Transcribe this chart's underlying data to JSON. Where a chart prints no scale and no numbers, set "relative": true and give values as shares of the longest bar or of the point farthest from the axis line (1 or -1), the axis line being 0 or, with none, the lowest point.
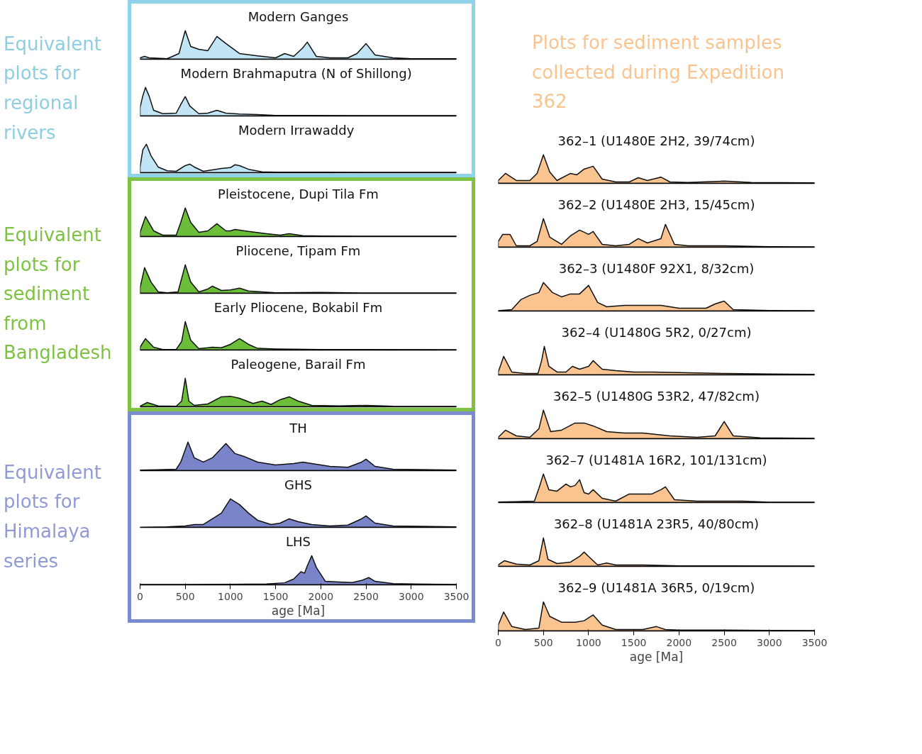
{
  "chart_data": [
    {
      "type": "area",
      "title": "Modern Ganges",
      "annotations": [
        "Equivalent plots for regional rivers"
      ],
      "relative": true,
      "color": "#c2e5f5",
      "xlim": [
        0,
        3500
      ],
      "tick_labels": false,
      "x": [
        0,
        50,
        100,
        300,
        430,
        500,
        560,
        650,
        750,
        850,
        950,
        1100,
        1300,
        1500,
        1600,
        1700,
        1800,
        1850,
        1950,
        2100,
        2300,
        2400,
        2500,
        2600,
        2800,
        3000,
        3500
      ],
      "values": [
        0.05,
        0.1,
        0.05,
        0.02,
        0.2,
        1,
        0.45,
        0.35,
        0.3,
        0.8,
        0.55,
        0.2,
        0.12,
        0.05,
        0.2,
        0.1,
        0.4,
        0.6,
        0.1,
        0.05,
        0.05,
        0.2,
        0.55,
        0.15,
        0.05,
        0.02,
        0.02
      ]
    },
    {
      "type": "area",
      "title": "Modern  Brahmaputra (N of Shillong)",
      "relative": true,
      "color": "#c2e5f5",
      "xlim": [
        0,
        3500
      ],
      "tick_labels": false,
      "x": [
        0,
        30,
        60,
        100,
        150,
        250,
        400,
        450,
        500,
        550,
        650,
        750,
        850,
        950,
        1100,
        1300,
        1500,
        1800,
        2500,
        3500
      ],
      "values": [
        0.3,
        0.7,
        1,
        0.7,
        0.2,
        0.08,
        0.1,
        0.4,
        0.68,
        0.35,
        0.08,
        0.1,
        0.2,
        0.1,
        0.07,
        0.05,
        0.02,
        0.02,
        0.01,
        0.01
      ]
    },
    {
      "type": "area",
      "title": "Modern  Irrawaddy",
      "relative": true,
      "color": "#c2e5f5",
      "xlim": [
        0,
        3500
      ],
      "tick_labels": false,
      "x": [
        0,
        30,
        70,
        120,
        200,
        300,
        400,
        500,
        550,
        600,
        700,
        800,
        900,
        1000,
        1050,
        1100,
        1200,
        1350,
        1500,
        2000,
        2500,
        3500
      ],
      "values": [
        0.2,
        0.8,
        1,
        0.6,
        0.2,
        0.07,
        0.05,
        0.25,
        0.3,
        0.2,
        0.05,
        0.1,
        0.15,
        0.18,
        0.28,
        0.25,
        0.12,
        0.03,
        0.02,
        0.02,
        0.01,
        0.01
      ]
    },
    {
      "type": "area",
      "title": "Pleistocene, Dupi Tila Fm",
      "annotations": [
        "Equivalent plots for sediment from Bangladesh"
      ],
      "relative": true,
      "color": "#6cbd3a",
      "xlim": [
        0,
        3500
      ],
      "tick_labels": false,
      "x": [
        0,
        60,
        150,
        250,
        400,
        450,
        500,
        560,
        650,
        750,
        850,
        950,
        1000,
        1050,
        1200,
        1400,
        1550,
        1650,
        1800,
        2000,
        2500,
        3500
      ],
      "values": [
        0.15,
        0.7,
        0.2,
        0.05,
        0.05,
        0.5,
        1,
        0.5,
        0.15,
        0.2,
        0.45,
        0.2,
        0.2,
        0.25,
        0.18,
        0.1,
        0.05,
        0.1,
        0.03,
        0.02,
        0.01,
        0.01
      ]
    },
    {
      "type": "area",
      "title": "Pliocene, Tipam Fm",
      "relative": true,
      "color": "#6cbd3a",
      "xlim": [
        0,
        3500
      ],
      "tick_labels": false,
      "x": [
        0,
        50,
        120,
        200,
        300,
        420,
        500,
        560,
        650,
        750,
        800,
        900,
        1000,
        1100,
        1200,
        1500,
        2000,
        2500,
        3500
      ],
      "values": [
        0.2,
        0.9,
        0.4,
        0.05,
        0.02,
        0.05,
        1,
        0.4,
        0.05,
        0.15,
        0.25,
        0.1,
        0.12,
        0.18,
        0.08,
        0.02,
        0.03,
        0.01,
        0.01
      ]
    },
    {
      "type": "area",
      "title": "Early Pliocene, Bokabil Fm",
      "relative": true,
      "color": "#6cbd3a",
      "xlim": [
        0,
        3500
      ],
      "tick_labels": false,
      "x": [
        0,
        60,
        150,
        250,
        400,
        460,
        500,
        560,
        650,
        750,
        800,
        900,
        1000,
        1100,
        1200,
        1300,
        1500,
        2000,
        3500
      ],
      "values": [
        0.1,
        0.4,
        0.1,
        0.02,
        0.02,
        0.3,
        1,
        0.35,
        0.05,
        0.08,
        0.1,
        0.08,
        0.2,
        0.4,
        0.2,
        0.06,
        0.04,
        0.02,
        0.01
      ]
    },
    {
      "type": "area",
      "title": "Paleogene, Barail Fm",
      "relative": true,
      "color": "#6cbd3a",
      "xlim": [
        0,
        3500
      ],
      "tick_labels": false,
      "x": [
        0,
        80,
        200,
        400,
        460,
        500,
        540,
        600,
        750,
        900,
        1000,
        1100,
        1250,
        1350,
        1450,
        1550,
        1650,
        1750,
        1900,
        2200,
        2500,
        2800,
        3500
      ],
      "values": [
        0.02,
        0.15,
        0.03,
        0.02,
        0.2,
        1,
        0.2,
        0.05,
        0.1,
        0.35,
        0.37,
        0.3,
        0.12,
        0.2,
        0.08,
        0.25,
        0.35,
        0.2,
        0.05,
        0.03,
        0.05,
        0.02,
        0.01
      ]
    },
    {
      "type": "area",
      "title": "TH",
      "annotations": [
        "Equivalent plots for Himalaya series"
      ],
      "relative": true,
      "color": "#7985c8",
      "xlim": [
        0,
        3500
      ],
      "tick_labels": false,
      "x": [
        0,
        200,
        400,
        450,
        530,
        600,
        700,
        800,
        950,
        1050,
        1150,
        1300,
        1500,
        1700,
        1800,
        1900,
        2100,
        2300,
        2450,
        2500,
        2600,
        2800,
        3500
      ],
      "values": [
        0.02,
        0.03,
        0.05,
        0.3,
        1,
        0.45,
        0.3,
        0.45,
        0.95,
        0.6,
        0.5,
        0.3,
        0.2,
        0.25,
        0.3,
        0.25,
        0.15,
        0.12,
        0.3,
        0.4,
        0.15,
        0.05,
        0.02
      ]
    },
    {
      "type": "area",
      "title": "GHS",
      "relative": true,
      "color": "#7985c8",
      "xlim": [
        0,
        3500
      ],
      "tick_labels": false,
      "x": [
        0,
        300,
        500,
        600,
        700,
        800,
        900,
        1000,
        1100,
        1200,
        1300,
        1450,
        1550,
        1650,
        1750,
        1900,
        2100,
        2300,
        2450,
        2500,
        2600,
        2800,
        3500
      ],
      "values": [
        0,
        0.02,
        0.05,
        0.1,
        0.1,
        0.3,
        0.5,
        1,
        0.8,
        0.5,
        0.25,
        0.1,
        0.15,
        0.3,
        0.2,
        0.1,
        0.05,
        0.08,
        0.3,
        0.4,
        0.15,
        0.05,
        0.02
      ]
    },
    {
      "type": "area",
      "title": "LHS",
      "relative": true,
      "color": "#7985c8",
      "xlim": [
        0,
        3500
      ],
      "xticks": [
        0,
        500,
        1000,
        1500,
        2000,
        2500,
        3000,
        3500
      ],
      "xlabel": "age [Ma]",
      "tick_labels": "x",
      "x": [
        0,
        500,
        1000,
        1400,
        1600,
        1700,
        1780,
        1820,
        1850,
        1900,
        1950,
        2050,
        2200,
        2350,
        2450,
        2530,
        2600,
        2800,
        3000,
        3500
      ],
      "values": [
        0.01,
        0.01,
        0.02,
        0.03,
        0.07,
        0.2,
        0.45,
        0.4,
        0.65,
        1,
        0.6,
        0.12,
        0.1,
        0.08,
        0.15,
        0.25,
        0.12,
        0.04,
        0.03,
        0.01
      ]
    },
    {
      "type": "area",
      "title": "362–1 (U1480E 2H2, 39/74cm)",
      "annotations": [
        "Plots for sediment samples collected during Expedition 362"
      ],
      "relative": true,
      "color": "#f9c48f",
      "xlim": [
        0,
        3500
      ],
      "tick_labels": false,
      "x": [
        0,
        80,
        200,
        350,
        430,
        500,
        570,
        650,
        800,
        870,
        950,
        1050,
        1150,
        1300,
        1450,
        1550,
        1650,
        1800,
        1900,
        2100,
        2500,
        2800,
        3500
      ],
      "values": [
        0.1,
        0.35,
        0.1,
        0.1,
        0.35,
        1,
        0.4,
        0.1,
        0.35,
        0.3,
        0.5,
        0.6,
        0.15,
        0.05,
        0.05,
        0.2,
        0.1,
        0.22,
        0.05,
        0.03,
        0.08,
        0.03,
        0.02
      ]
    },
    {
      "type": "area",
      "title": "362–2 (U1480E 2H3, 15/45cm)",
      "relative": true,
      "color": "#f9c48f",
      "xlim": [
        0,
        3500
      ],
      "tick_labels": false,
      "x": [
        0,
        50,
        130,
        200,
        350,
        430,
        500,
        570,
        700,
        800,
        900,
        1000,
        1050,
        1150,
        1300,
        1450,
        1550,
        1650,
        1800,
        1850,
        1950,
        2100,
        2500,
        3000,
        3500
      ],
      "values": [
        0.2,
        0.45,
        0.45,
        0.05,
        0.05,
        0.2,
        1,
        0.35,
        0.1,
        0.4,
        0.6,
        0.45,
        0.55,
        0.1,
        0.05,
        0.1,
        0.3,
        0.15,
        0.3,
        0.8,
        0.1,
        0.05,
        0.05,
        0.02,
        0.01
      ]
    },
    {
      "type": "area",
      "title": "362–3 (U1480F 92X1, 8/32cm)",
      "relative": true,
      "color": "#f9c48f",
      "xlim": [
        0,
        3500
      ],
      "tick_labels": false,
      "x": [
        0,
        150,
        250,
        350,
        450,
        500,
        600,
        700,
        800,
        900,
        1000,
        1100,
        1200,
        1400,
        1600,
        1800,
        2000,
        2300,
        2400,
        2500,
        2600,
        3000,
        3500
      ],
      "values": [
        0.01,
        0.05,
        0.4,
        0.55,
        0.65,
        1,
        0.65,
        0.5,
        0.6,
        0.6,
        0.9,
        0.3,
        0.15,
        0.2,
        0.2,
        0.2,
        0.1,
        0.1,
        0.25,
        0.35,
        0.05,
        0.02,
        0.01
      ]
    },
    {
      "type": "area",
      "title": "362–4 (U1480G 5R2, 0/27cm)",
      "relative": true,
      "color": "#f9c48f",
      "xlim": [
        0,
        3500
      ],
      "tick_labels": false,
      "x": [
        0,
        60,
        150,
        300,
        440,
        480,
        510,
        560,
        650,
        750,
        820,
        900,
        1000,
        1050,
        1150,
        1300,
        1500,
        1700,
        2000,
        2500,
        3000,
        3500
      ],
      "values": [
        0.1,
        0.65,
        0.1,
        0.05,
        0.05,
        0.5,
        1,
        0.3,
        0.1,
        0.1,
        0.3,
        0.2,
        0.3,
        0.5,
        0.2,
        0.15,
        0.1,
        0.1,
        0.08,
        0.05,
        0.03,
        0.02
      ]
    },
    {
      "type": "area",
      "title": "362–5 (U1480G 53R2, 47/82cm)",
      "relative": true,
      "color": "#f9c48f",
      "xlim": [
        0,
        3500
      ],
      "tick_labels": false,
      "x": [
        0,
        80,
        200,
        350,
        450,
        500,
        580,
        700,
        850,
        950,
        1050,
        1200,
        1400,
        1600,
        1900,
        2200,
        2400,
        2500,
        2600,
        2900,
        3500
      ],
      "values": [
        0.05,
        0.3,
        0.1,
        0.05,
        0.35,
        1,
        0.25,
        0.3,
        0.55,
        0.55,
        0.45,
        0.25,
        0.2,
        0.2,
        0.1,
        0.05,
        0.1,
        0.6,
        0.1,
        0.03,
        0.01
      ]
    },
    {
      "type": "area",
      "title": "362–7 (U1481A 16R2, 101/131cm)",
      "relative": true,
      "color": "#f9c48f",
      "xlim": [
        0,
        3500
      ],
      "tick_labels": false,
      "x": [
        0,
        200,
        400,
        450,
        500,
        560,
        650,
        750,
        800,
        850,
        900,
        950,
        1000,
        1050,
        1150,
        1300,
        1450,
        1550,
        1700,
        1800,
        1850,
        1950,
        2200,
        2700,
        3000,
        3500
      ],
      "values": [
        0.02,
        0.03,
        0.05,
        0.5,
        1,
        0.45,
        0.4,
        0.65,
        0.55,
        0.6,
        0.8,
        0.35,
        0.3,
        0.45,
        0.15,
        0.05,
        0.3,
        0.3,
        0.3,
        0.45,
        0.55,
        0.1,
        0.05,
        0.05,
        0.01,
        0.01
      ]
    },
    {
      "type": "area",
      "title": "362–8 (U1481A 23R5, 40/80cm)",
      "relative": true,
      "color": "#f9c48f",
      "xlim": [
        0,
        3500
      ],
      "tick_labels": false,
      "x": [
        0,
        70,
        200,
        350,
        450,
        500,
        550,
        650,
        800,
        900,
        950,
        1000,
        1100,
        1200,
        1300,
        1600,
        2000,
        2500,
        3500
      ],
      "values": [
        0.05,
        0.2,
        0.08,
        0.05,
        0.2,
        1,
        0.25,
        0.1,
        0.15,
        0.35,
        0.5,
        0.35,
        0.05,
        0.12,
        0.05,
        0.05,
        0.02,
        0.02,
        0.01
      ]
    },
    {
      "type": "area",
      "title": "362–9 (U1481A 36R5, 0/19cm)",
      "relative": true,
      "color": "#f9c48f",
      "xlim": [
        0,
        3500
      ],
      "xticks": [
        0,
        500,
        1000,
        1500,
        2000,
        2500,
        3000,
        3500
      ],
      "xlabel": "age [Ma]",
      "tick_labels": "x",
      "x": [
        0,
        60,
        150,
        300,
        450,
        500,
        570,
        700,
        850,
        950,
        1050,
        1150,
        1300,
        1600,
        1750,
        1850,
        2000,
        2500,
        3000,
        3500
      ],
      "values": [
        0.2,
        0.65,
        0.15,
        0.05,
        0.1,
        1,
        0.5,
        0.3,
        0.3,
        0.35,
        0.55,
        0.2,
        0.05,
        0.05,
        0.15,
        0.05,
        0.03,
        0.03,
        0.02,
        0.01
      ]
    }
  ]
}
